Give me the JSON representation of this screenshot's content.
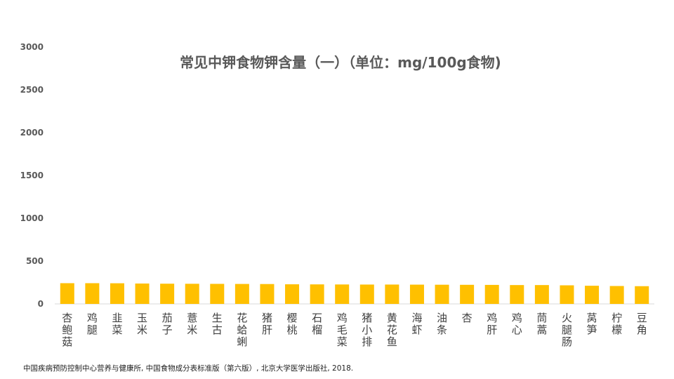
{
  "chart_data": {
    "type": "bar",
    "title": "常见中钾食物钾含量（一）（单位：mg/100g食物)",
    "xlabel": "",
    "ylabel": "",
    "ylim": [
      0,
      3000
    ],
    "yticks": [
      "0",
      "500",
      "1000",
      "1500",
      "2000",
      "2500",
      "3000"
    ],
    "grid": false,
    "bar_color": "#FFC000",
    "categories": [
      "杏鲍菇",
      "鸡腿",
      "韭菜",
      "玉米",
      "茄子",
      "薏米",
      "生古",
      "花蛤蜊",
      "猪肝",
      "樱桃",
      "石榴",
      "鸡毛菜",
      "猪小排",
      "黄花鱼",
      "海虾",
      "油条",
      "杏",
      "鸡肝",
      "鸡心",
      "茼蒿",
      "火腿肠",
      "莴笋",
      "柠檬",
      "豆角"
    ],
    "values": [
      242,
      242,
      241,
      238,
      236,
      235,
      234,
      233,
      232,
      229,
      228,
      227,
      226,
      226,
      225,
      224,
      223,
      222,
      220,
      220,
      217,
      212,
      209,
      207
    ]
  },
  "footnote": "中国疾病预防控制中心营养与健康所, 中国食物成分表标准版（第六版）, 北京大学医学出版社, 2018."
}
